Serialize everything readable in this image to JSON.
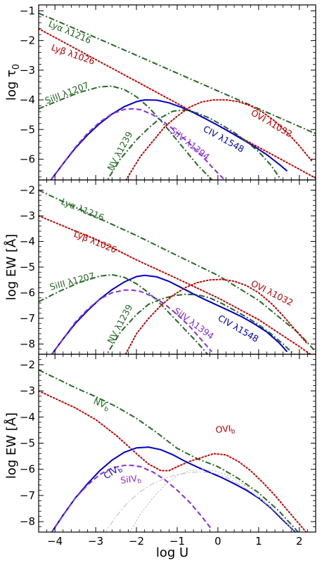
{
  "chart_data": [
    {
      "type": "line",
      "title": "",
      "xlabel": "",
      "ylabel": "log τ₀",
      "xlim": [
        -4.4,
        2.4
      ],
      "ylim": [
        -6.7,
        -0.8
      ],
      "xticks": [
        -4,
        -3,
        -2,
        -1,
        0,
        1,
        2
      ],
      "yticks": [
        -6,
        -5,
        -4,
        -3,
        -2,
        -1
      ],
      "xtick_labels_shown": false,
      "series": [
        {
          "name": "Lyα λ1216",
          "color": "#226b22",
          "style": "dashdot",
          "x": [
            -4.4,
            -3,
            -2,
            -1,
            0,
            1,
            2,
            2.4
          ],
          "y": [
            -1.08,
            -1.9,
            -2.5,
            -3.1,
            -3.7,
            -4.3,
            -4.9,
            -5.14
          ]
        },
        {
          "name": "Lyβ λ1026",
          "color": "#cc0000",
          "style": "dotted",
          "x": [
            -4.4,
            -3,
            -2,
            -1,
            0,
            1,
            2,
            2.4
          ],
          "y": [
            -1.6,
            -2.64,
            -3.38,
            -4.12,
            -4.86,
            -5.6,
            -6.34,
            -6.64
          ]
        },
        {
          "name": "SiIII λ1207",
          "color": "#226b22",
          "style": "dashdot",
          "x": [
            -4.4,
            -3.9,
            -3.4,
            -2.9,
            -2.6,
            -2.3,
            -2.0,
            -1.7,
            -1.4,
            -1.1,
            -0.8,
            -0.5,
            -0.25,
            0.0
          ],
          "y": [
            -4.3,
            -4.02,
            -3.75,
            -3.56,
            -3.54,
            -3.65,
            -3.9,
            -4.25,
            -4.7,
            -5.2,
            -5.7,
            -6.2,
            -6.55,
            -6.9
          ]
        },
        {
          "name": "CIV λ1548",
          "color": "#0000cc",
          "style": "solid",
          "x": [
            -4.1,
            -3.8,
            -3.5,
            -3.2,
            -2.9,
            -2.6,
            -2.3,
            -2.0,
            -1.8,
            -1.5,
            -1.2,
            -0.9,
            -0.6,
            -0.3,
            0.0,
            0.3,
            0.6,
            0.9,
            1.2,
            1.5,
            1.7
          ],
          "y": [
            -6.7,
            -6.15,
            -5.63,
            -5.18,
            -4.8,
            -4.48,
            -4.23,
            -4.06,
            -4.0,
            -4.01,
            -4.1,
            -4.25,
            -4.43,
            -4.64,
            -4.86,
            -5.09,
            -5.33,
            -5.58,
            -5.85,
            -6.17,
            -6.4
          ]
        },
        {
          "name": "SiIV λ1394",
          "color": "#8a2be2",
          "style": "dashed",
          "x": [
            -4.1,
            -3.8,
            -3.5,
            -3.2,
            -2.9,
            -2.6,
            -2.3,
            -2.1,
            -1.9,
            -1.6,
            -1.3,
            -1.0,
            -0.7,
            -0.4,
            -0.1,
            0.2
          ],
          "y": [
            -6.7,
            -6.15,
            -5.6,
            -5.13,
            -4.75,
            -4.47,
            -4.32,
            -4.3,
            -4.33,
            -4.5,
            -4.77,
            -5.1,
            -5.47,
            -5.88,
            -6.33,
            -6.75
          ]
        },
        {
          "name": "NV λ1239",
          "color": "#226b22",
          "style": "dashdot",
          "x": [
            -2.8,
            -2.4,
            -2.0,
            -1.7,
            -1.4,
            -1.1,
            -0.8,
            -0.5,
            -0.2,
            0.1,
            0.4,
            0.7,
            1.0,
            1.3,
            1.55
          ],
          "y": [
            -6.9,
            -6.0,
            -5.35,
            -4.95,
            -4.6,
            -4.38,
            -4.34,
            -4.45,
            -4.62,
            -4.85,
            -5.1,
            -5.4,
            -5.75,
            -6.2,
            -6.7
          ]
        },
        {
          "name": "OVI λ1032",
          "color": "#cc0000",
          "style": "dotted",
          "x": [
            -2.3,
            -1.9,
            -1.6,
            -1.3,
            -1.0,
            -0.7,
            -0.4,
            -0.1,
            0.2,
            0.5,
            0.8,
            1.1,
            1.4,
            1.7,
            2.0,
            2.3
          ],
          "y": [
            -6.8,
            -5.9,
            -5.4,
            -4.9,
            -4.55,
            -4.25,
            -4.07,
            -4.0,
            -4.0,
            -4.06,
            -4.2,
            -4.42,
            -4.72,
            -5.1,
            -5.55,
            -6.05
          ]
        }
      ],
      "annotations": [
        "Lyα λ1216",
        "Lyβ λ1026",
        "SiIII λ1207",
        "NV λ1239",
        "SiIV λ1394",
        "CIV λ1548",
        "OVI λ1032"
      ]
    },
    {
      "type": "line",
      "title": "",
      "xlabel": "",
      "ylabel": "log EW [Å]",
      "xlim": [
        -4.4,
        2.4
      ],
      "ylim": [
        -8.4,
        -1.6
      ],
      "xticks": [
        -4,
        -3,
        -2,
        -1,
        0,
        1,
        2
      ],
      "yticks": [
        -8,
        -7,
        -6,
        -5,
        -4,
        -3,
        -2
      ],
      "xtick_labels_shown": false,
      "series": [
        {
          "name": "Lyα λ1216",
          "color": "#226b22",
          "style": "dashdot",
          "x": [
            -4.4,
            -3,
            -2,
            -1,
            0,
            1,
            2,
            2.4
          ],
          "y": [
            -2.0,
            -3.04,
            -3.77,
            -4.55,
            -5.32,
            -6.3,
            -7.6,
            -8.3
          ]
        },
        {
          "name": "Lyβ λ1026",
          "color": "#cc0000",
          "style": "dotted",
          "x": [
            -4.4,
            -3,
            -2,
            -1,
            0,
            1,
            2,
            2.4
          ],
          "y": [
            -3.0,
            -3.92,
            -4.72,
            -5.45,
            -6.2,
            -7.05,
            -8.1,
            -8.55
          ]
        },
        {
          "name": "SiIII λ1207",
          "color": "#226b22",
          "style": "dashdot",
          "x": [
            -4.4,
            -3.9,
            -3.4,
            -2.9,
            -2.6,
            -2.3,
            -2.0,
            -1.7,
            -1.4,
            -1.1,
            -0.8,
            -0.5,
            -0.2
          ],
          "y": [
            -6.35,
            -5.95,
            -5.6,
            -5.35,
            -5.3,
            -5.4,
            -5.65,
            -6.0,
            -6.45,
            -6.95,
            -7.45,
            -7.95,
            -8.5
          ]
        },
        {
          "name": "CIV λ1548",
          "color": "#0000cc",
          "style": "solid",
          "x": [
            -4.1,
            -3.8,
            -3.5,
            -3.2,
            -2.9,
            -2.6,
            -2.3,
            -2.0,
            -1.8,
            -1.5,
            -1.2,
            -0.9,
            -0.6,
            -0.3,
            0.0,
            0.3,
            0.6,
            0.9,
            1.2,
            1.5,
            1.7
          ],
          "y": [
            -8.45,
            -7.8,
            -7.2,
            -6.7,
            -6.25,
            -5.88,
            -5.58,
            -5.37,
            -5.32,
            -5.38,
            -5.56,
            -5.8,
            -6.05,
            -6.28,
            -6.5,
            -6.72,
            -6.95,
            -7.22,
            -7.53,
            -7.95,
            -8.3
          ]
        },
        {
          "name": "SiIV λ1394",
          "color": "#8a2be2",
          "style": "dashed",
          "x": [
            -4.1,
            -3.8,
            -3.5,
            -3.2,
            -2.9,
            -2.6,
            -2.3,
            -2.1,
            -1.9,
            -1.6,
            -1.3,
            -1.0,
            -0.7,
            -0.4,
            -0.15
          ],
          "y": [
            -8.45,
            -7.8,
            -7.15,
            -6.65,
            -6.25,
            -6.0,
            -5.9,
            -5.9,
            -5.95,
            -6.15,
            -6.45,
            -6.85,
            -7.3,
            -7.85,
            -8.3
          ]
        },
        {
          "name": "NV λ1239",
          "color": "#226b22",
          "style": "dashdot",
          "x": [
            -2.8,
            -2.4,
            -2.0,
            -1.7,
            -1.4,
            -1.1,
            -0.8,
            -0.5,
            -0.2,
            0.1,
            0.4,
            0.7,
            1.0,
            1.3,
            1.6,
            1.9
          ],
          "y": [
            -8.6,
            -7.55,
            -6.85,
            -6.45,
            -6.25,
            -6.12,
            -6.06,
            -6.08,
            -6.2,
            -6.42,
            -6.68,
            -6.95,
            -7.25,
            -7.6,
            -8.0,
            -8.45
          ]
        },
        {
          "name": "OVI λ1032",
          "color": "#cc0000",
          "style": "dotted",
          "x": [
            -2.3,
            -2.0,
            -1.7,
            -1.4,
            -1.1,
            -0.8,
            -0.5,
            -0.2,
            0.1,
            0.4,
            0.7,
            1.0,
            1.3,
            1.6,
            1.9,
            2.2
          ],
          "y": [
            -8.5,
            -7.6,
            -7.0,
            -6.5,
            -6.1,
            -5.8,
            -5.6,
            -5.5,
            -5.48,
            -5.55,
            -5.72,
            -6.0,
            -6.4,
            -6.9,
            -7.45,
            -8.0
          ]
        }
      ],
      "annotations": [
        "Lyα λ1216",
        "Lyβ λ1026",
        "SiIII λ1207",
        "NV λ1239",
        "SiIV λ1394",
        "CIV λ1548",
        "OVI λ1032"
      ]
    },
    {
      "type": "line",
      "title": "",
      "xlabel": "log U",
      "ylabel": "log EW [Å]",
      "xlim": [
        -4.4,
        2.4
      ],
      "ylim": [
        -8.4,
        -1.6
      ],
      "xticks": [
        -4,
        -3,
        -2,
        -1,
        0,
        1,
        2
      ],
      "yticks": [
        -8,
        -7,
        -6,
        -5,
        -4,
        -3,
        -2
      ],
      "xtick_labels_shown": true,
      "series": [
        {
          "name": "NV_b",
          "color": "#226b22",
          "style": "dashdot",
          "x": [
            -4.4,
            -3.5,
            -3.0,
            -2.5,
            -2.0,
            -1.5,
            -1.0,
            -0.5,
            0.0,
            0.5,
            1.0,
            1.5,
            2.0
          ],
          "y": [
            -2.2,
            -2.88,
            -3.22,
            -3.6,
            -4.05,
            -4.6,
            -5.2,
            -5.6,
            -5.9,
            -6.35,
            -6.9,
            -7.6,
            -8.45
          ]
        },
        {
          "name": "",
          "color": "#cc0000",
          "style": "dotted",
          "x": [
            -4.4,
            -3.5,
            -3.0,
            -2.5,
            -2.0,
            -1.7,
            -1.4,
            -1.2,
            -1.0,
            -0.7,
            -0.4,
            -0.1,
            0.2,
            0.5,
            0.8,
            1.1,
            1.4,
            1.7,
            2.0,
            2.3
          ],
          "y": [
            -3.0,
            -3.65,
            -4.1,
            -4.7,
            -5.4,
            -5.8,
            -6.05,
            -6.05,
            -5.9,
            -5.7,
            -5.55,
            -5.4,
            -5.45,
            -5.7,
            -6.05,
            -6.5,
            -7.0,
            -7.55,
            -8.1,
            -8.65
          ]
        },
        {
          "name": "CIV_b",
          "color": "#0000cc",
          "style": "solid",
          "x": [
            -4.1,
            -3.8,
            -3.5,
            -3.2,
            -2.9,
            -2.6,
            -2.3,
            -2.0,
            -1.7,
            -1.4,
            -1.1,
            -0.8,
            -0.5,
            -0.2,
            0.1,
            0.4,
            0.7,
            1.0,
            1.3,
            1.6,
            1.9
          ],
          "y": [
            -8.45,
            -7.75,
            -7.1,
            -6.55,
            -6.05,
            -5.65,
            -5.35,
            -5.18,
            -5.15,
            -5.25,
            -5.45,
            -5.7,
            -5.92,
            -6.12,
            -6.32,
            -6.55,
            -6.8,
            -7.1,
            -7.48,
            -7.95,
            -8.4
          ]
        },
        {
          "name": "SiIV_b",
          "color": "#8a2be2",
          "style": "dashed",
          "x": [
            -4.1,
            -3.8,
            -3.5,
            -3.2,
            -2.9,
            -2.6,
            -2.3,
            -2.1,
            -1.9,
            -1.6,
            -1.3,
            -1.0,
            -0.7,
            -0.4,
            -0.15
          ],
          "y": [
            -8.45,
            -7.75,
            -7.1,
            -6.6,
            -6.2,
            -5.95,
            -5.85,
            -5.85,
            -5.9,
            -6.1,
            -6.4,
            -6.8,
            -7.25,
            -7.8,
            -8.3
          ]
        },
        {
          "name": "",
          "color": "#bbbbbb",
          "style": "dashdot",
          "x": [
            -2.8,
            -2.5,
            -2.2,
            -1.9,
            -1.6,
            -1.3,
            -1.0,
            -0.7,
            -0.4,
            -0.1,
            0.2,
            0.5,
            0.8,
            1.1,
            1.4,
            1.7,
            2.0
          ],
          "y": [
            -8.5,
            -7.8,
            -7.25,
            -6.85,
            -6.55,
            -6.35,
            -6.2,
            -6.12,
            -6.1,
            -6.15,
            -6.3,
            -6.55,
            -6.85,
            -7.2,
            -7.6,
            -8.05,
            -8.55
          ]
        },
        {
          "name": "",
          "color": "#bbbbbb",
          "style": "dotted",
          "x": [
            -2.2,
            -1.9,
            -1.6,
            -1.3,
            -1.0,
            -0.7,
            -0.4,
            -0.1,
            0.2,
            0.5,
            0.8,
            1.1,
            1.4,
            1.7,
            2.0
          ],
          "y": [
            -8.5,
            -7.7,
            -7.1,
            -6.6,
            -6.25,
            -6.05,
            -6.0,
            -6.05,
            -6.2,
            -6.45,
            -6.75,
            -7.15,
            -7.6,
            -8.1,
            -8.6
          ]
        }
      ],
      "annotations": [
        "NV_b",
        "CIV_b",
        "SiIV_b",
        "OVI_b"
      ]
    }
  ],
  "labels": {
    "p1": {
      "ylabel_main": "log τ",
      "ylabel_sub": "0",
      "lya": "Lyα λ1216",
      "lyb": "Lyβ λ1026",
      "siiii": "SiIII λ1207",
      "nv": "NV λ1239",
      "siiv": "SiIV λ1394",
      "civ": "CIV λ1548",
      "ovi": "OVI λ1032"
    },
    "p2": {
      "ylabel": "log EW [Å]",
      "lya": "Lyα λ1216",
      "lyb": "Lyβ λ1026",
      "siiii": "SiIII λ1207",
      "nv": "NV λ1239",
      "siiv": "SiIV λ1394",
      "civ": "CIV λ1548",
      "ovi": "OVI λ1032"
    },
    "p3": {
      "ylabel": "log EW [Å]",
      "xlabel": "log U",
      "nv_main": "NV",
      "nv_sub": "b",
      "civ_main": "CIV",
      "civ_sub": "b",
      "siiv_main": "SiIV",
      "siiv_sub": "b",
      "ovi_main": "OVI",
      "ovi_sub": "b"
    }
  }
}
